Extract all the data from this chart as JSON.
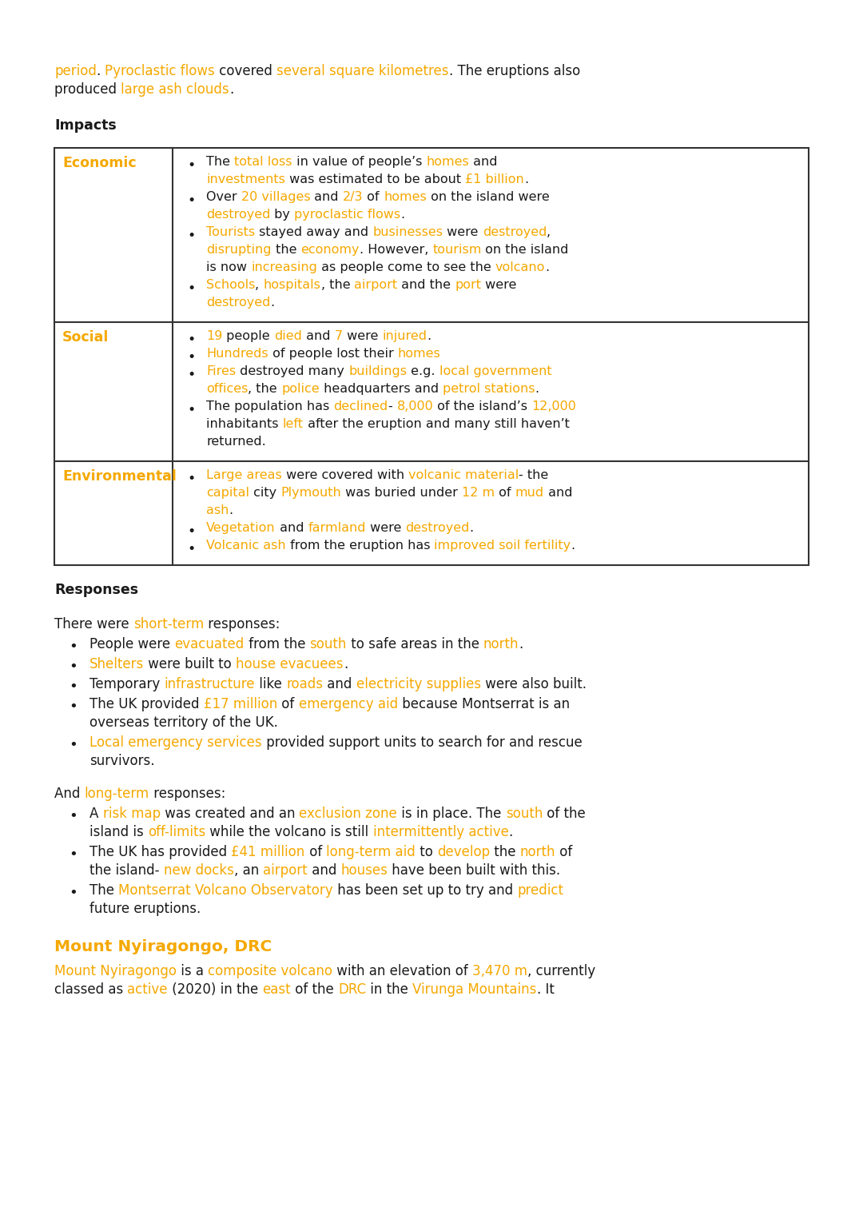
{
  "bg_color": "#ffffff",
  "black": "#1a1a1a",
  "orange": "#f5a800",
  "intro_lines": [
    [
      {
        "t": "period",
        "c": "#f5a800"
      },
      {
        "t": ". ",
        "c": "#1a1a1a"
      },
      {
        "t": "Pyroclastic flows",
        "c": "#f5a800"
      },
      {
        "t": " covered ",
        "c": "#1a1a1a"
      },
      {
        "t": "several square kilometres",
        "c": "#f5a800"
      },
      {
        "t": ". The eruptions also",
        "c": "#1a1a1a"
      }
    ],
    [
      {
        "t": "produced ",
        "c": "#1a1a1a"
      },
      {
        "t": "large ash clouds",
        "c": "#f5a800"
      },
      {
        "t": ".",
        "c": "#1a1a1a"
      }
    ]
  ],
  "impacts_heading": "Impacts",
  "table_rows": [
    {
      "label": "Economic",
      "lines": [
        {
          "b": true,
          "segs": [
            {
              "t": "The ",
              "c": "#1a1a1a"
            },
            {
              "t": "total loss",
              "c": "#f5a800"
            },
            {
              "t": " in value of people’s ",
              "c": "#1a1a1a"
            },
            {
              "t": "homes",
              "c": "#f5a800"
            },
            {
              "t": " and",
              "c": "#1a1a1a"
            }
          ]
        },
        {
          "b": false,
          "segs": [
            {
              "t": "investments",
              "c": "#f5a800"
            },
            {
              "t": " was estimated to be about ",
              "c": "#1a1a1a"
            },
            {
              "t": "£1 billion",
              "c": "#f5a800"
            },
            {
              "t": ".",
              "c": "#1a1a1a"
            }
          ]
        },
        {
          "b": true,
          "segs": [
            {
              "t": "Over ",
              "c": "#1a1a1a"
            },
            {
              "t": "20 villages",
              "c": "#f5a800"
            },
            {
              "t": " and ",
              "c": "#1a1a1a"
            },
            {
              "t": "2/3",
              "c": "#f5a800"
            },
            {
              "t": " of ",
              "c": "#1a1a1a"
            },
            {
              "t": "homes",
              "c": "#f5a800"
            },
            {
              "t": " on the island were",
              "c": "#1a1a1a"
            }
          ]
        },
        {
          "b": false,
          "segs": [
            {
              "t": "destroyed",
              "c": "#f5a800"
            },
            {
              "t": " by ",
              "c": "#1a1a1a"
            },
            {
              "t": "pyroclastic flows",
              "c": "#f5a800"
            },
            {
              "t": ".",
              "c": "#1a1a1a"
            }
          ]
        },
        {
          "b": true,
          "segs": [
            {
              "t": "Tourists",
              "c": "#f5a800"
            },
            {
              "t": " stayed away and ",
              "c": "#1a1a1a"
            },
            {
              "t": "businesses",
              "c": "#f5a800"
            },
            {
              "t": " were ",
              "c": "#1a1a1a"
            },
            {
              "t": "destroyed",
              "c": "#f5a800"
            },
            {
              "t": ",",
              "c": "#1a1a1a"
            }
          ]
        },
        {
          "b": false,
          "segs": [
            {
              "t": "disrupting",
              "c": "#f5a800"
            },
            {
              "t": " the ",
              "c": "#1a1a1a"
            },
            {
              "t": "economy",
              "c": "#f5a800"
            },
            {
              "t": ". However, ",
              "c": "#1a1a1a"
            },
            {
              "t": "tourism",
              "c": "#f5a800"
            },
            {
              "t": " on the island",
              "c": "#1a1a1a"
            }
          ]
        },
        {
          "b": false,
          "segs": [
            {
              "t": "is now ",
              "c": "#1a1a1a"
            },
            {
              "t": "increasing",
              "c": "#f5a800"
            },
            {
              "t": " as people come to see the ",
              "c": "#1a1a1a"
            },
            {
              "t": "volcano",
              "c": "#f5a800"
            },
            {
              "t": ".",
              "c": "#1a1a1a"
            }
          ]
        },
        {
          "b": true,
          "segs": [
            {
              "t": "Schools",
              "c": "#f5a800"
            },
            {
              "t": ", ",
              "c": "#1a1a1a"
            },
            {
              "t": "hospitals",
              "c": "#f5a800"
            },
            {
              "t": ", the ",
              "c": "#1a1a1a"
            },
            {
              "t": "airport",
              "c": "#f5a800"
            },
            {
              "t": " and the ",
              "c": "#1a1a1a"
            },
            {
              "t": "port",
              "c": "#f5a800"
            },
            {
              "t": " were",
              "c": "#1a1a1a"
            }
          ]
        },
        {
          "b": false,
          "segs": [
            {
              "t": "destroyed",
              "c": "#f5a800"
            },
            {
              "t": ".",
              "c": "#1a1a1a"
            }
          ]
        }
      ]
    },
    {
      "label": "Social",
      "lines": [
        {
          "b": true,
          "segs": [
            {
              "t": "19",
              "c": "#f5a800"
            },
            {
              "t": " people ",
              "c": "#1a1a1a"
            },
            {
              "t": "died",
              "c": "#f5a800"
            },
            {
              "t": " and ",
              "c": "#1a1a1a"
            },
            {
              "t": "7",
              "c": "#f5a800"
            },
            {
              "t": " were ",
              "c": "#1a1a1a"
            },
            {
              "t": "injured",
              "c": "#f5a800"
            },
            {
              "t": ".",
              "c": "#1a1a1a"
            }
          ]
        },
        {
          "b": true,
          "segs": [
            {
              "t": "Hundreds",
              "c": "#f5a800"
            },
            {
              "t": " of people lost their ",
              "c": "#1a1a1a"
            },
            {
              "t": "homes",
              "c": "#f5a800"
            }
          ]
        },
        {
          "b": true,
          "segs": [
            {
              "t": "Fires",
              "c": "#f5a800"
            },
            {
              "t": " destroyed many ",
              "c": "#1a1a1a"
            },
            {
              "t": "buildings",
              "c": "#f5a800"
            },
            {
              "t": " e.g. ",
              "c": "#1a1a1a"
            },
            {
              "t": "local government",
              "c": "#f5a800"
            }
          ]
        },
        {
          "b": false,
          "segs": [
            {
              "t": "offices",
              "c": "#f5a800"
            },
            {
              "t": ", the ",
              "c": "#1a1a1a"
            },
            {
              "t": "police",
              "c": "#f5a800"
            },
            {
              "t": " headquarters and ",
              "c": "#1a1a1a"
            },
            {
              "t": "petrol stations",
              "c": "#f5a800"
            },
            {
              "t": ".",
              "c": "#1a1a1a"
            }
          ]
        },
        {
          "b": true,
          "segs": [
            {
              "t": "The population has ",
              "c": "#1a1a1a"
            },
            {
              "t": "declined",
              "c": "#f5a800"
            },
            {
              "t": "- ",
              "c": "#1a1a1a"
            },
            {
              "t": "8,000",
              "c": "#f5a800"
            },
            {
              "t": " of the island’s ",
              "c": "#1a1a1a"
            },
            {
              "t": "12,000",
              "c": "#f5a800"
            }
          ]
        },
        {
          "b": false,
          "segs": [
            {
              "t": "inhabitants ",
              "c": "#1a1a1a"
            },
            {
              "t": "left",
              "c": "#f5a800"
            },
            {
              "t": " after the eruption and many still haven’t",
              "c": "#1a1a1a"
            }
          ]
        },
        {
          "b": false,
          "segs": [
            {
              "t": "returned.",
              "c": "#1a1a1a"
            }
          ]
        }
      ]
    },
    {
      "label": "Environmental",
      "lines": [
        {
          "b": true,
          "segs": [
            {
              "t": "Large areas",
              "c": "#f5a800"
            },
            {
              "t": " were covered with ",
              "c": "#1a1a1a"
            },
            {
              "t": "volcanic material",
              "c": "#f5a800"
            },
            {
              "t": "- the",
              "c": "#1a1a1a"
            }
          ]
        },
        {
          "b": false,
          "segs": [
            {
              "t": "capital",
              "c": "#f5a800"
            },
            {
              "t": " city ",
              "c": "#1a1a1a"
            },
            {
              "t": "Plymouth",
              "c": "#f5a800"
            },
            {
              "t": " was buried under ",
              "c": "#1a1a1a"
            },
            {
              "t": "12 m",
              "c": "#f5a800"
            },
            {
              "t": " of ",
              "c": "#1a1a1a"
            },
            {
              "t": "mud",
              "c": "#f5a800"
            },
            {
              "t": " and",
              "c": "#1a1a1a"
            }
          ]
        },
        {
          "b": false,
          "segs": [
            {
              "t": "ash",
              "c": "#f5a800"
            },
            {
              "t": ".",
              "c": "#1a1a1a"
            }
          ]
        },
        {
          "b": true,
          "segs": [
            {
              "t": "Vegetation",
              "c": "#f5a800"
            },
            {
              "t": " and ",
              "c": "#1a1a1a"
            },
            {
              "t": "farmland",
              "c": "#f5a800"
            },
            {
              "t": " were ",
              "c": "#1a1a1a"
            },
            {
              "t": "destroyed",
              "c": "#f5a800"
            },
            {
              "t": ".",
              "c": "#1a1a1a"
            }
          ]
        },
        {
          "b": true,
          "segs": [
            {
              "t": "Volcanic ash",
              "c": "#f5a800"
            },
            {
              "t": " from the eruption has ",
              "c": "#1a1a1a"
            },
            {
              "t": "improved soil fertility",
              "c": "#f5a800"
            },
            {
              "t": ".",
              "c": "#1a1a1a"
            }
          ]
        }
      ]
    }
  ],
  "responses_heading": "Responses",
  "short_term_intro": [
    {
      "t": "There were ",
      "c": "#1a1a1a"
    },
    {
      "t": "short-term",
      "c": "#f5a800"
    },
    {
      "t": " responses:",
      "c": "#1a1a1a"
    }
  ],
  "short_term_bullets": [
    [
      {
        "b": true,
        "segs": [
          {
            "t": "People were ",
            "c": "#1a1a1a"
          },
          {
            "t": "evacuated",
            "c": "#f5a800"
          },
          {
            "t": " from the ",
            "c": "#1a1a1a"
          },
          {
            "t": "south",
            "c": "#f5a800"
          },
          {
            "t": " to safe areas in the ",
            "c": "#1a1a1a"
          },
          {
            "t": "north",
            "c": "#f5a800"
          },
          {
            "t": ".",
            "c": "#1a1a1a"
          }
        ]
      }
    ],
    [
      {
        "b": true,
        "segs": [
          {
            "t": "Shelters",
            "c": "#f5a800"
          },
          {
            "t": " were built to ",
            "c": "#1a1a1a"
          },
          {
            "t": "house evacuees",
            "c": "#f5a800"
          },
          {
            "t": ".",
            "c": "#1a1a1a"
          }
        ]
      }
    ],
    [
      {
        "b": true,
        "segs": [
          {
            "t": "Temporary ",
            "c": "#1a1a1a"
          },
          {
            "t": "infrastructure",
            "c": "#f5a800"
          },
          {
            "t": " like ",
            "c": "#1a1a1a"
          },
          {
            "t": "roads",
            "c": "#f5a800"
          },
          {
            "t": " and ",
            "c": "#1a1a1a"
          },
          {
            "t": "electricity supplies",
            "c": "#f5a800"
          },
          {
            "t": " were also built.",
            "c": "#1a1a1a"
          }
        ]
      }
    ],
    [
      {
        "b": true,
        "segs": [
          {
            "t": "The UK provided ",
            "c": "#1a1a1a"
          },
          {
            "t": "£17 million",
            "c": "#f5a800"
          },
          {
            "t": " of ",
            "c": "#1a1a1a"
          },
          {
            "t": "emergency aid",
            "c": "#f5a800"
          },
          {
            "t": " because Montserrat is an",
            "c": "#1a1a1a"
          }
        ]
      },
      {
        "b": false,
        "segs": [
          {
            "t": "overseas territory of the UK.",
            "c": "#1a1a1a"
          }
        ]
      }
    ],
    [
      {
        "b": true,
        "segs": [
          {
            "t": "Local emergency services",
            "c": "#f5a800"
          },
          {
            "t": " provided support units to search for and rescue",
            "c": "#1a1a1a"
          }
        ]
      },
      {
        "b": false,
        "segs": [
          {
            "t": "survivors.",
            "c": "#1a1a1a"
          }
        ]
      }
    ]
  ],
  "long_term_intro": [
    {
      "t": "And ",
      "c": "#1a1a1a"
    },
    {
      "t": "long-term",
      "c": "#f5a800"
    },
    {
      "t": " responses:",
      "c": "#1a1a1a"
    }
  ],
  "long_term_bullets": [
    [
      {
        "b": true,
        "segs": [
          {
            "t": "A ",
            "c": "#1a1a1a"
          },
          {
            "t": "risk map",
            "c": "#f5a800"
          },
          {
            "t": " was created and an ",
            "c": "#1a1a1a"
          },
          {
            "t": "exclusion zone",
            "c": "#f5a800"
          },
          {
            "t": " is in place. The ",
            "c": "#1a1a1a"
          },
          {
            "t": "south",
            "c": "#f5a800"
          },
          {
            "t": " of the",
            "c": "#1a1a1a"
          }
        ]
      },
      {
        "b": false,
        "segs": [
          {
            "t": "island is ",
            "c": "#1a1a1a"
          },
          {
            "t": "off-limits",
            "c": "#f5a800"
          },
          {
            "t": " while the volcano is still ",
            "c": "#1a1a1a"
          },
          {
            "t": "intermittently active",
            "c": "#f5a800"
          },
          {
            "t": ".",
            "c": "#1a1a1a"
          }
        ]
      }
    ],
    [
      {
        "b": true,
        "segs": [
          {
            "t": "The UK has provided ",
            "c": "#1a1a1a"
          },
          {
            "t": "£41 million",
            "c": "#f5a800"
          },
          {
            "t": " of ",
            "c": "#1a1a1a"
          },
          {
            "t": "long-term aid",
            "c": "#f5a800"
          },
          {
            "t": " to ",
            "c": "#1a1a1a"
          },
          {
            "t": "develop",
            "c": "#f5a800"
          },
          {
            "t": " the ",
            "c": "#1a1a1a"
          },
          {
            "t": "north",
            "c": "#f5a800"
          },
          {
            "t": " of",
            "c": "#1a1a1a"
          }
        ]
      },
      {
        "b": false,
        "segs": [
          {
            "t": "the island- ",
            "c": "#1a1a1a"
          },
          {
            "t": "new docks",
            "c": "#f5a800"
          },
          {
            "t": ", an ",
            "c": "#1a1a1a"
          },
          {
            "t": "airport",
            "c": "#f5a800"
          },
          {
            "t": " and ",
            "c": "#1a1a1a"
          },
          {
            "t": "houses",
            "c": "#f5a800"
          },
          {
            "t": " have been built with this.",
            "c": "#1a1a1a"
          }
        ]
      }
    ],
    [
      {
        "b": true,
        "segs": [
          {
            "t": "The ",
            "c": "#1a1a1a"
          },
          {
            "t": "Montserrat Volcano Observatory",
            "c": "#f5a800"
          },
          {
            "t": " has been set up to try and ",
            "c": "#1a1a1a"
          },
          {
            "t": "predict",
            "c": "#f5a800"
          }
        ]
      },
      {
        "b": false,
        "segs": [
          {
            "t": "future eruptions.",
            "c": "#1a1a1a"
          }
        ]
      }
    ]
  ],
  "nyiragongo_heading": "Mount Nyiragongo, DRC",
  "nyiragongo_lines": [
    [
      {
        "t": "Mount Nyiragongo",
        "c": "#f5a800"
      },
      {
        "t": " is a ",
        "c": "#1a1a1a"
      },
      {
        "t": "composite volcano",
        "c": "#f5a800"
      },
      {
        "t": " with an elevation of ",
        "c": "#1a1a1a"
      },
      {
        "t": "3,470 m",
        "c": "#f5a800"
      },
      {
        "t": ", currently",
        "c": "#1a1a1a"
      }
    ],
    [
      {
        "t": "classed as ",
        "c": "#1a1a1a"
      },
      {
        "t": "active",
        "c": "#f5a800"
      },
      {
        "t": " (2020) in the ",
        "c": "#1a1a1a"
      },
      {
        "t": "east",
        "c": "#f5a800"
      },
      {
        "t": " of the ",
        "c": "#1a1a1a"
      },
      {
        "t": "DRC",
        "c": "#f5a800"
      },
      {
        "t": " in the ",
        "c": "#1a1a1a"
      },
      {
        "t": "Virunga Mountains",
        "c": "#f5a800"
      },
      {
        "t": ". It",
        "c": "#1a1a1a"
      }
    ]
  ]
}
